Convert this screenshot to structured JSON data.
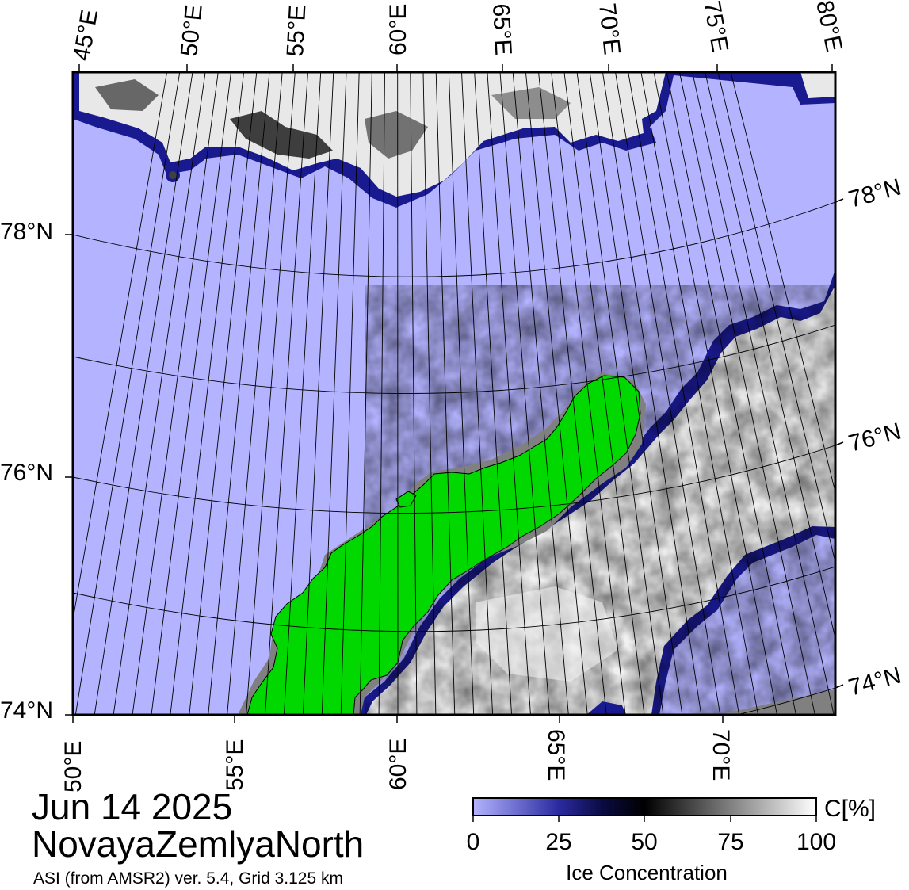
{
  "map": {
    "date": "Jun 14 2025",
    "region": "NovayaZemlyaNorth",
    "source": "ASI (from AMSR2) ver. 5.4,  Grid 3.125 km",
    "top_lon_labels": [
      "45°E",
      "50°E",
      "55°E",
      "60°E",
      "65°E",
      "70°E",
      "75°E",
      "80°E"
    ],
    "bottom_lon_labels": [
      "50°E",
      "55°E",
      "60°E",
      "65°E",
      "70°E"
    ],
    "left_lat_labels": [
      "78°N",
      "76°N",
      "74°N"
    ],
    "right_lat_labels": [
      "78°N",
      "76°N",
      "74°N"
    ],
    "colors": {
      "open_water": "#b3b3ff",
      "land": "#00d800",
      "coast_mask": "#808080",
      "ice_low": "#1a1a80",
      "ice_high": "#ffffff"
    }
  },
  "colorbar": {
    "title": "Ice Concentration",
    "unit": "C[%]",
    "ticks": [
      "0",
      "25",
      "50",
      "75",
      "100"
    ]
  }
}
